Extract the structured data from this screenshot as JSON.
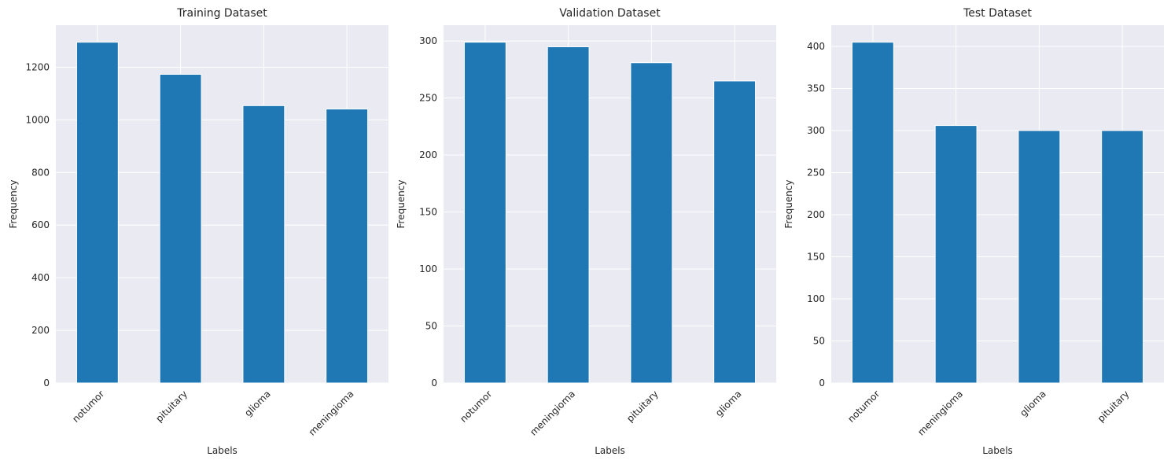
{
  "chart_data": [
    {
      "type": "bar",
      "title": "Training Dataset",
      "xlabel": "Labels",
      "ylabel": "Frequency",
      "categories": [
        "notumor",
        "pituitary",
        "glioma",
        "meningioma"
      ],
      "values": [
        1295,
        1173,
        1054,
        1041
      ],
      "ylim": [
        0,
        1359.75
      ],
      "yticks": [
        0,
        200,
        400,
        600,
        800,
        1000,
        1200
      ],
      "bar_color": "#1f77b4",
      "grid": true,
      "background": "#eaeaf2"
    },
    {
      "type": "bar",
      "title": "Validation Dataset",
      "xlabel": "Labels",
      "ylabel": "Frequency",
      "categories": [
        "notumor",
        "meningioma",
        "pituitary",
        "glioma"
      ],
      "values": [
        299,
        295,
        281,
        265
      ],
      "ylim": [
        0,
        313.95
      ],
      "yticks": [
        0,
        50,
        100,
        150,
        200,
        250,
        300
      ],
      "bar_color": "#1f77b4",
      "grid": true,
      "background": "#eaeaf2"
    },
    {
      "type": "bar",
      "title": "Test Dataset",
      "xlabel": "Labels",
      "ylabel": "Frequency",
      "categories": [
        "notumor",
        "meningioma",
        "glioma",
        "pituitary"
      ],
      "values": [
        405,
        306,
        300,
        300
      ],
      "ylim": [
        0,
        425.25
      ],
      "yticks": [
        0,
        50,
        100,
        150,
        200,
        250,
        300,
        350,
        400
      ],
      "bar_color": "#1f77b4",
      "grid": true,
      "background": "#eaeaf2"
    }
  ]
}
